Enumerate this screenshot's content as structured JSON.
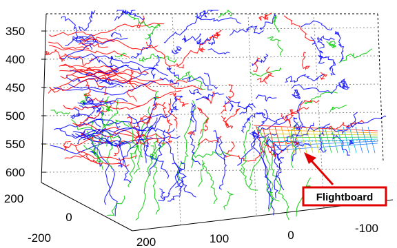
{
  "chart_data": {
    "type": "3d-line",
    "title": "",
    "xlabel": "",
    "ylabel": "",
    "zlabel": "",
    "grid": true,
    "z_axis": {
      "ticks": [
        350,
        400,
        450,
        500,
        550,
        600
      ],
      "direction": "reversed"
    },
    "y_axis": {
      "ticks": [
        200,
        0,
        -200
      ]
    },
    "x_axis": {
      "ticks": [
        200,
        100,
        0,
        -100
      ]
    },
    "series": [
      {
        "color": "#ff0000"
      },
      {
        "color": "#0000ff"
      },
      {
        "color": "#00c800"
      }
    ],
    "annotation": {
      "label": "Flightboard",
      "box_color": "#e00000"
    }
  }
}
